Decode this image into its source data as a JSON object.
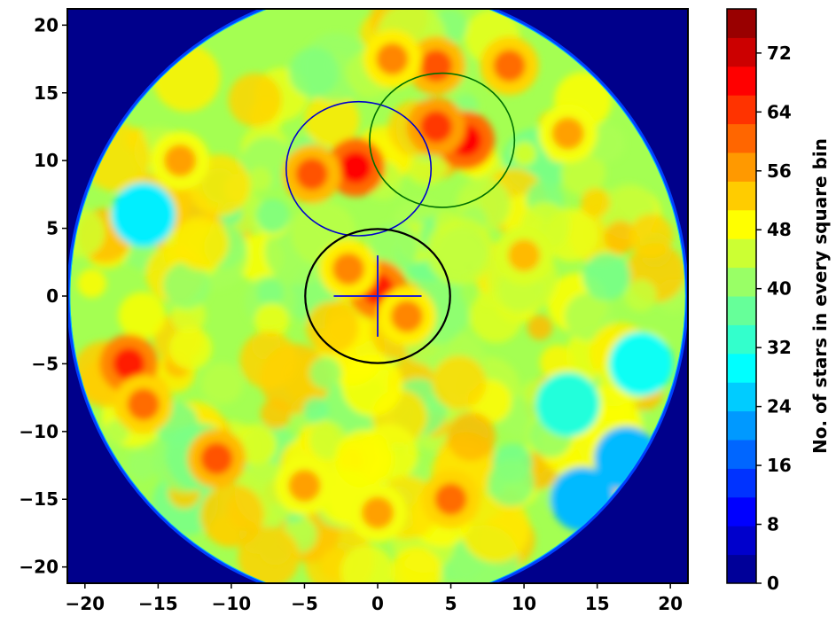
{
  "chart_data": {
    "type": "heatmap",
    "title": "",
    "xlabel": "",
    "ylabel": "",
    "xlim": [
      -21.2,
      21.2
    ],
    "ylim": [
      -21.2,
      21.2
    ],
    "x_ticks": [
      "−20",
      "−15",
      "−10",
      "−5",
      "0",
      "5",
      "10",
      "15",
      "20"
    ],
    "y_ticks": [
      "20",
      "15",
      "10",
      "5",
      "0",
      "−5",
      "−10",
      "−15",
      "−20"
    ],
    "field_radius": 21,
    "colorbar": {
      "label": "No. of stars in every square bin",
      "range": [
        0,
        78
      ],
      "levels": 20,
      "ticks": [
        "0",
        "8",
        "16",
        "24",
        "32",
        "40",
        "48",
        "56",
        "64",
        "72"
      ],
      "colormap": "jet"
    },
    "hotspots": [
      {
        "x": -1.5,
        "y": 9.5,
        "value": 68
      },
      {
        "x": -4.5,
        "y": 9.0,
        "value": 62
      },
      {
        "x": 6.0,
        "y": 11.5,
        "value": 68
      },
      {
        "x": 4.0,
        "y": 12.5,
        "value": 64
      },
      {
        "x": 0.0,
        "y": 0.5,
        "value": 66
      },
      {
        "x": -2.0,
        "y": 2.0,
        "value": 58
      },
      {
        "x": 2.0,
        "y": -1.5,
        "value": 58
      },
      {
        "x": -17.0,
        "y": -5.0,
        "value": 66
      },
      {
        "x": -16.0,
        "y": -8.0,
        "value": 60
      },
      {
        "x": -11.0,
        "y": -12.0,
        "value": 62
      },
      {
        "x": 5.0,
        "y": -15.0,
        "value": 60
      },
      {
        "x": 4.0,
        "y": 17.0,
        "value": 62
      },
      {
        "x": 9.0,
        "y": 17.0,
        "value": 60
      },
      {
        "x": 1.0,
        "y": 17.5,
        "value": 58
      },
      {
        "x": -13.5,
        "y": 10.0,
        "value": 56
      },
      {
        "x": 10.0,
        "y": 3.0,
        "value": 54
      },
      {
        "x": -5.0,
        "y": -14.0,
        "value": 56
      },
      {
        "x": 0.0,
        "y": -16.0,
        "value": 56
      },
      {
        "x": 13.0,
        "y": 12.0,
        "value": 56
      }
    ],
    "coldspots": [
      {
        "x": 17.0,
        "y": -12.0,
        "value": 24
      },
      {
        "x": 14.0,
        "y": -15.0,
        "value": 24
      },
      {
        "x": -16.0,
        "y": 6.0,
        "value": 28
      },
      {
        "x": 18.0,
        "y": -5.0,
        "value": 30
      },
      {
        "x": 13.0,
        "y": -8.0,
        "value": 32
      }
    ],
    "annotations": [
      {
        "type": "circle",
        "color": "#0000cc",
        "center": [
          -1.3,
          9.4
        ],
        "radius": 4.95
      },
      {
        "type": "circle",
        "color": "#007000",
        "center": [
          4.4,
          11.5
        ],
        "radius": 4.95
      },
      {
        "type": "circle",
        "color": "#000000",
        "center": [
          0.0,
          0.0
        ],
        "radius": 4.95
      },
      {
        "type": "cross",
        "color": "#2222cc",
        "center": [
          0.0,
          0.0
        ],
        "half_width": 3.0,
        "half_height": 3.0
      }
    ]
  }
}
